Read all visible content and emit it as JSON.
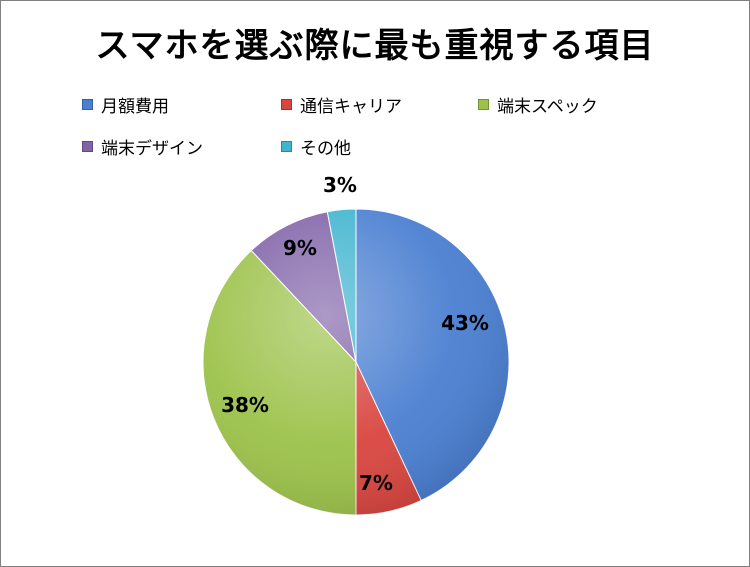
{
  "chart_data": {
    "type": "pie",
    "title": "スマホを選ぶ際に最も重視する項目",
    "legend_position": "top",
    "series": [
      {
        "name": "月額費用",
        "value": 43,
        "label": "43%",
        "color": "#4a7fd1"
      },
      {
        "name": "通信キャリア",
        "value": 7,
        "label": "7%",
        "color": "#d9453f"
      },
      {
        "name": "端末スペック",
        "value": 38,
        "label": "38%",
        "color": "#9cc24a"
      },
      {
        "name": "端末デザイン",
        "value": 9,
        "label": "9%",
        "color": "#8063a8"
      },
      {
        "name": "その他",
        "value": 3,
        "label": "3%",
        "color": "#3fb4cf"
      }
    ]
  }
}
